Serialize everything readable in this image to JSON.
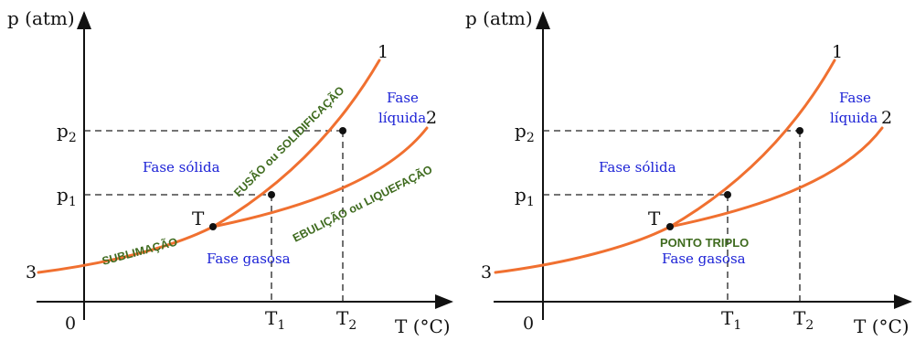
{
  "left_panel": {
    "y_axis_label": "p (atm)",
    "x_axis_label": "T (°C)",
    "origin": "0",
    "p1": "p",
    "p1_sub": "1",
    "p2": "p",
    "p2_sub": "2",
    "t1": "T",
    "t1_sub": "1",
    "t2": "T",
    "t2_sub": "2",
    "curve1": "1",
    "curve2": "2",
    "curve3": "3",
    "triple_point": "T",
    "solid": "Fase sólida",
    "liquid_line1": "Fase",
    "liquid_line2": "líquida",
    "gas": "Fase gasosa",
    "sublimation": "SUBLIMAÇÃO",
    "fusion": "FUSÃO ou SOLIDIFICAÇÃO",
    "boiling": "EBULIÇÃO ou LIQUEFAÇÃO"
  },
  "right_panel": {
    "y_axis_label": "p (atm)",
    "x_axis_label": "T (°C)",
    "origin": "0",
    "p1": "p",
    "p1_sub": "1",
    "p2": "p",
    "p2_sub": "2",
    "t1": "T",
    "t1_sub": "1",
    "t2": "T",
    "t2_sub": "2",
    "curve1": "1",
    "curve2": "2",
    "curve3": "3",
    "triple_point": "T",
    "solid": "Fase sólida",
    "liquid_line1": "Fase",
    "liquid_line2": "líquida",
    "gas": "Fase gasosa",
    "triple_point_label": "PONTO TRIPLO"
  },
  "colors": {
    "curve": "#f07030",
    "phase_text": "#1c22d6",
    "transition_text": "#3f6b1f"
  }
}
